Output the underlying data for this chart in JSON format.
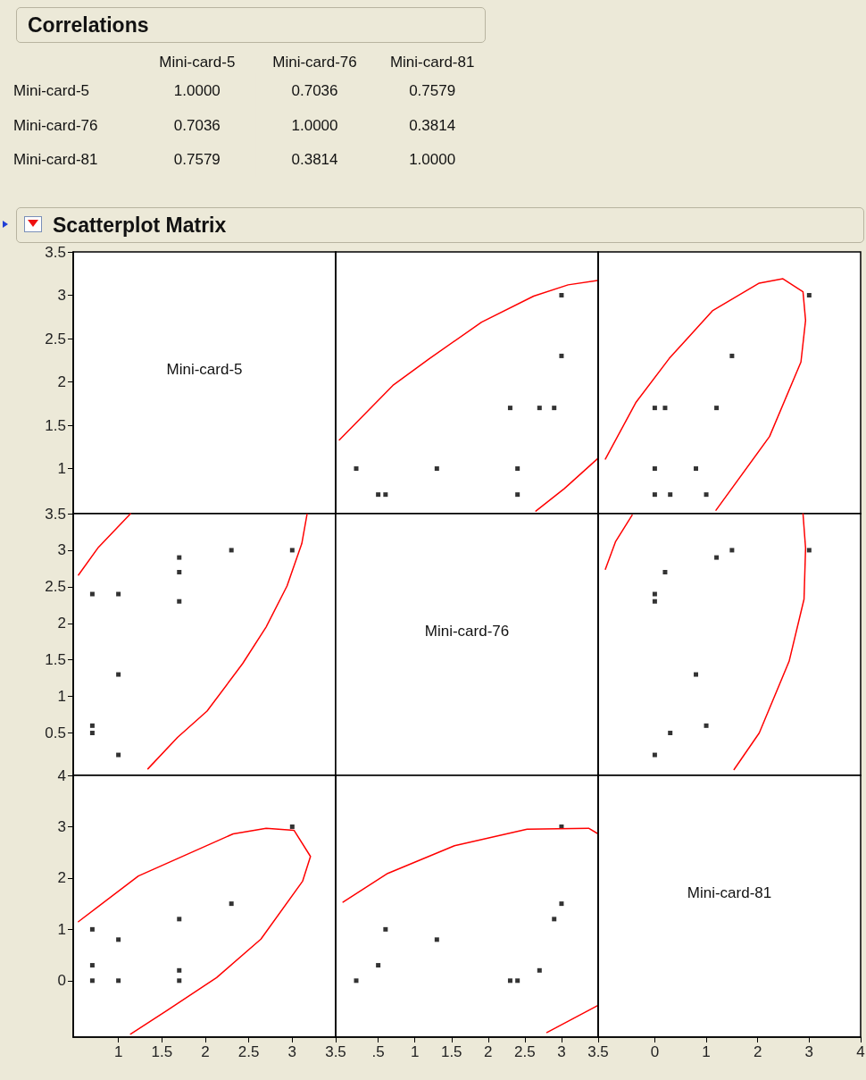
{
  "chart_data": [
    {
      "type": "heatmap",
      "title": "Correlations",
      "categories": [
        "Mini-card-5",
        "Mini-card-76",
        "Mini-card-81"
      ],
      "y_categories": [
        "Mini-card-5",
        "Mini-card-76",
        "Mini-card-81"
      ],
      "color": "#ece9d8",
      "cells": [
        [
          1,
          0.7036,
          0.7579
        ],
        [
          0.7036,
          1,
          0.3814
        ],
        [
          0.7579,
          0.3814,
          1
        ]
      ],
      "cell_labels": [
        [
          "1.0000",
          "0.7036",
          "0.7579"
        ],
        [
          "0.7036",
          "1.0000",
          "0.3814"
        ],
        [
          "0.7579",
          "0.3814",
          "1.0000"
        ]
      ]
    },
    {
      "type": "scatter",
      "title": "Scatterplot Matrix",
      "annotations": [
        "Mini-card-5"
      ],
      "xlim": [
        0.48,
        3.5
      ],
      "ylim": [
        0.48,
        3.5
      ],
      "yticks": [
        1,
        1.5,
        2,
        2.5,
        3,
        3.5
      ],
      "tick_labels": "y"
    },
    {
      "type": "scatter",
      "xlim": [
        -0.08,
        3.5
      ],
      "ylim": [
        0.48,
        3.5
      ],
      "tick_labels": false,
      "marker": "square",
      "series": [
        {
          "color": "#000000",
          "x": [
            3,
            3,
            2.3,
            2.7,
            2.9,
            0.2,
            1.3,
            2.4,
            0.5,
            0.6,
            2.4
          ],
          "values": [
            3,
            2.3,
            1.7,
            1.7,
            1.7,
            1,
            1,
            1,
            0.7,
            0.7,
            0.7
          ]
        },
        {
          "type": "line",
          "marker": "none",
          "line_style": "solid",
          "color": "#ff0000",
          "x": [
            -0.03,
            0.7,
            1.2,
            1.91,
            2.62,
            3.09,
            3.49,
            null,
            2.65,
            3.04,
            3.5
          ],
          "values": [
            1.33,
            1.96,
            2.27,
            2.69,
            2.99,
            3.12,
            3.17,
            null,
            0.51,
            0.77,
            1.12
          ]
        }
      ]
    },
    {
      "type": "scatter",
      "xlim": [
        -1.1,
        4
      ],
      "ylim": [
        0.48,
        3.5
      ],
      "tick_labels": false,
      "marker": "square",
      "series": [
        {
          "color": "#000000",
          "x": [
            0,
            0.2,
            1.2,
            1.5,
            3,
            0,
            0.8,
            0,
            0.3,
            1
          ],
          "values": [
            1.7,
            1.7,
            1.7,
            2.3,
            3,
            1,
            1,
            0.7,
            0.7,
            0.7
          ]
        },
        {
          "type": "line",
          "marker": "none",
          "line_style": "solid",
          "color": "#ff0000",
          "x": [
            -0.96,
            -0.37,
            0.28,
            1.12,
            2.03,
            2.49,
            2.88,
            2.93,
            2.84,
            2.23,
            1.19
          ],
          "values": [
            1.11,
            1.76,
            2.27,
            2.82,
            3.14,
            3.19,
            3.04,
            2.71,
            2.23,
            1.37,
            0.52
          ]
        }
      ]
    },
    {
      "type": "scatter",
      "xlim": [
        0.48,
        3.5
      ],
      "ylim": [
        -0.08,
        3.5
      ],
      "yticks": [
        0.5,
        1,
        1.5,
        2,
        2.5,
        3,
        3.5
      ],
      "tick_labels": "y",
      "marker": "square",
      "series": [
        {
          "color": "#000000",
          "x": [
            0.7,
            0.7,
            0.7,
            1,
            1,
            1,
            1.7,
            1.7,
            1.7,
            2.3,
            3
          ],
          "values": [
            0.5,
            0.6,
            2.4,
            0.2,
            1.3,
            2.4,
            2.3,
            2.7,
            2.9,
            3,
            3
          ]
        },
        {
          "type": "line",
          "marker": "none",
          "line_style": "solid",
          "color": "#ff0000",
          "x": [
            0.54,
            0.77,
            1.14,
            null,
            3.17,
            3.11,
            2.94,
            2.7,
            2.43,
            2.02,
            1.68,
            1.34
          ],
          "values": [
            2.66,
            3.04,
            3.5,
            null,
            3.49,
            3.09,
            2.51,
            1.95,
            1.45,
            0.8,
            0.44,
            0.01
          ]
        }
      ]
    },
    {
      "type": "other",
      "annotations": [
        "Mini-card-76"
      ]
    },
    {
      "type": "scatter",
      "xlim": [
        -1.1,
        4
      ],
      "ylim": [
        -0.08,
        3.5
      ],
      "tick_labels": false,
      "marker": "square",
      "series": [
        {
          "color": "#000000",
          "x": [
            1.5,
            3,
            1.2,
            0.2,
            0,
            0,
            0.8,
            1,
            0.3,
            0
          ],
          "values": [
            3,
            3,
            2.9,
            2.7,
            2.4,
            2.3,
            1.3,
            0.6,
            0.5,
            0.2
          ]
        },
        {
          "type": "line",
          "marker": "none",
          "line_style": "solid",
          "color": "#ff0000",
          "x": [
            -0.96,
            -0.76,
            -0.44,
            null,
            2.88,
            2.93,
            2.9,
            2.61,
            2.03,
            1.54
          ],
          "values": [
            2.74,
            3.12,
            3.48,
            null,
            3.5,
            3.03,
            2.33,
            1.48,
            0.5,
            0
          ]
        }
      ]
    },
    {
      "type": "scatter",
      "xlim": [
        0.48,
        3.5
      ],
      "xticks": [
        1,
        1.5,
        2,
        2.5,
        3,
        3.5
      ],
      "ylim": [
        -1.1,
        4
      ],
      "yticks": [
        0,
        1,
        2,
        3,
        4
      ],
      "marker": "square",
      "series": [
        {
          "color": "#000000",
          "x": [
            0.7,
            0.7,
            0.7,
            1,
            1,
            1.7,
            1.7,
            1.7,
            2.3,
            3
          ],
          "values": [
            1,
            0.3,
            0,
            0.8,
            0,
            1.2,
            0.2,
            0,
            1.5,
            3
          ]
        },
        {
          "type": "line",
          "marker": "none",
          "line_style": "solid",
          "color": "#ff0000",
          "x": [
            0.54,
            1.23,
            2.32,
            2.7,
            3.02,
            3.21,
            3.12,
            2.64,
            2.13,
            1.56,
            1.14
          ],
          "values": [
            1.15,
            2.04,
            2.86,
            2.97,
            2.93,
            2.42,
            1.94,
            0.81,
            0.06,
            -0.58,
            -1.04
          ]
        }
      ]
    },
    {
      "type": "scatter",
      "xlim": [
        -0.08,
        3.5
      ],
      "xticks": [
        {
          "value": 0.5,
          "label": ".5"
        },
        1,
        1.5,
        2,
        2.5,
        3,
        3.5
      ],
      "ylim": [
        -1.1,
        4
      ],
      "tick_labels": "x",
      "marker": "square",
      "series": [
        {
          "color": "#000000",
          "x": [
            0.2,
            0.5,
            0.6,
            1.3,
            2.3,
            2.4,
            2.7,
            2.9,
            3,
            3
          ],
          "values": [
            0,
            0.3,
            1,
            0.8,
            0,
            0,
            0.2,
            1.2,
            1.5,
            3
          ]
        },
        {
          "type": "line",
          "marker": "none",
          "line_style": "solid",
          "color": "#ff0000",
          "x": [
            0.02,
            0.63,
            1.54,
            2.53,
            3.37,
            3.5,
            null,
            2.8,
            3.5
          ],
          "values": [
            1.53,
            2.09,
            2.63,
            2.95,
            2.97,
            2.86,
            null,
            -1.01,
            -0.48
          ]
        }
      ]
    },
    {
      "type": "scatter",
      "annotations": [
        "Mini-card-81"
      ],
      "xlim": [
        -1.1,
        4
      ],
      "xticks": [
        0,
        1,
        2,
        3,
        4
      ],
      "ylim": [
        -1.1,
        4
      ],
      "tick_labels": "x"
    }
  ]
}
